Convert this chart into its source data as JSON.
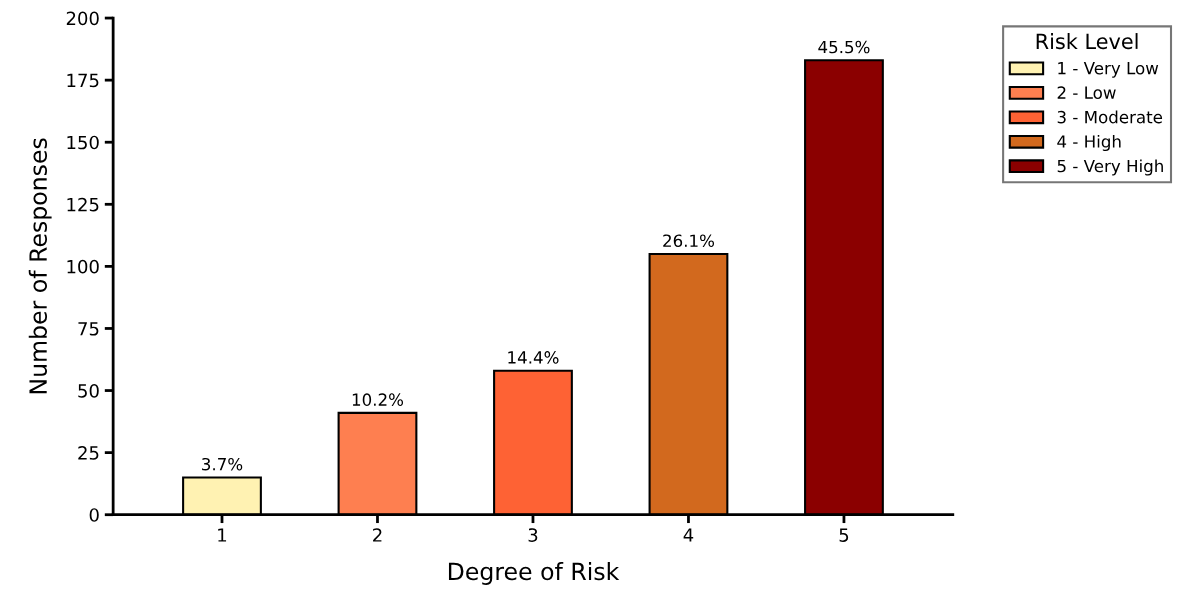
{
  "chart_data": {
    "type": "bar",
    "xlabel": "Degree of Risk",
    "ylabel": "Number of Responses",
    "legend_title": "Risk Level",
    "categories": [
      "1",
      "2",
      "3",
      "4",
      "5"
    ],
    "series": [
      {
        "name": "1 - Very Low",
        "color": "#fff2b2",
        "values": [
          15,
          null,
          null,
          null,
          null
        ]
      },
      {
        "name": "2 - Low",
        "color": "#fe7f50",
        "values": [
          null,
          41,
          null,
          null,
          null
        ]
      },
      {
        "name": "3 - Moderate",
        "color": "#fe6234",
        "values": [
          null,
          null,
          58,
          null,
          null
        ]
      },
      {
        "name": "4 - High",
        "color": "#d2691e",
        "values": [
          null,
          null,
          null,
          105,
          null
        ]
      },
      {
        "name": "5 - Very High",
        "color": "#8b0000",
        "values": [
          null,
          null,
          null,
          null,
          183
        ]
      }
    ],
    "annotations": [
      {
        "text": "3.7%",
        "x": "1",
        "y": 15
      },
      {
        "text": "10.2%",
        "x": "2",
        "y": 41
      },
      {
        "text": "14.4%",
        "x": "3",
        "y": 58
      },
      {
        "text": "26.1%",
        "x": "4",
        "y": 105
      },
      {
        "text": "45.5%",
        "x": "5",
        "y": 183
      }
    ],
    "ylim": [
      0,
      200
    ],
    "yticks": [
      0,
      25,
      50,
      75,
      100,
      125,
      150,
      175,
      200
    ],
    "grid": false,
    "legend": "top right"
  }
}
